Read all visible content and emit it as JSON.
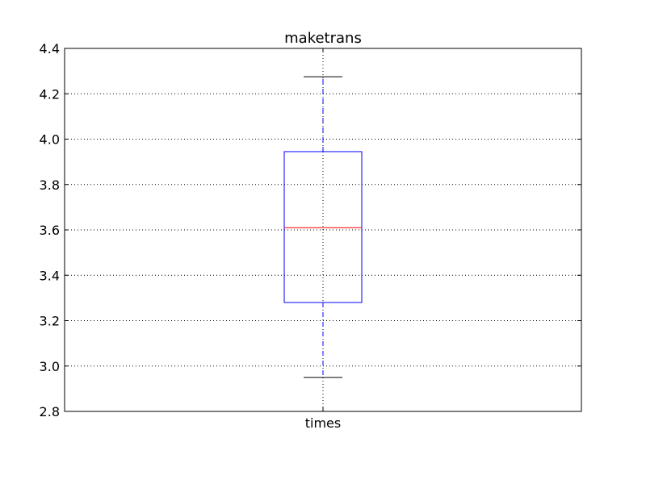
{
  "chart_data": {
    "type": "box",
    "title": "maketrans",
    "xlabel": "",
    "ylabel": "",
    "categories": [
      "times"
    ],
    "ylim": [
      2.8,
      4.4
    ],
    "yticks": [
      2.8,
      3.0,
      3.2,
      3.4,
      3.6,
      3.8,
      4.0,
      4.2,
      4.4
    ],
    "ytick_labels": [
      "2.8",
      "3.0",
      "3.2",
      "3.4",
      "3.6",
      "3.8",
      "4.0",
      "4.2",
      "4.4"
    ],
    "grid": true,
    "boxes": [
      {
        "category": "times",
        "whisker_low": 2.95,
        "q1": 3.28,
        "median": 3.61,
        "q3": 3.945,
        "whisker_high": 4.275
      }
    ],
    "colors": {
      "box": "#0000ff",
      "whisker": "#0000ff",
      "cap": "#000000",
      "median": "#ff0000",
      "grid": "#000000",
      "axes": "#000000"
    }
  }
}
